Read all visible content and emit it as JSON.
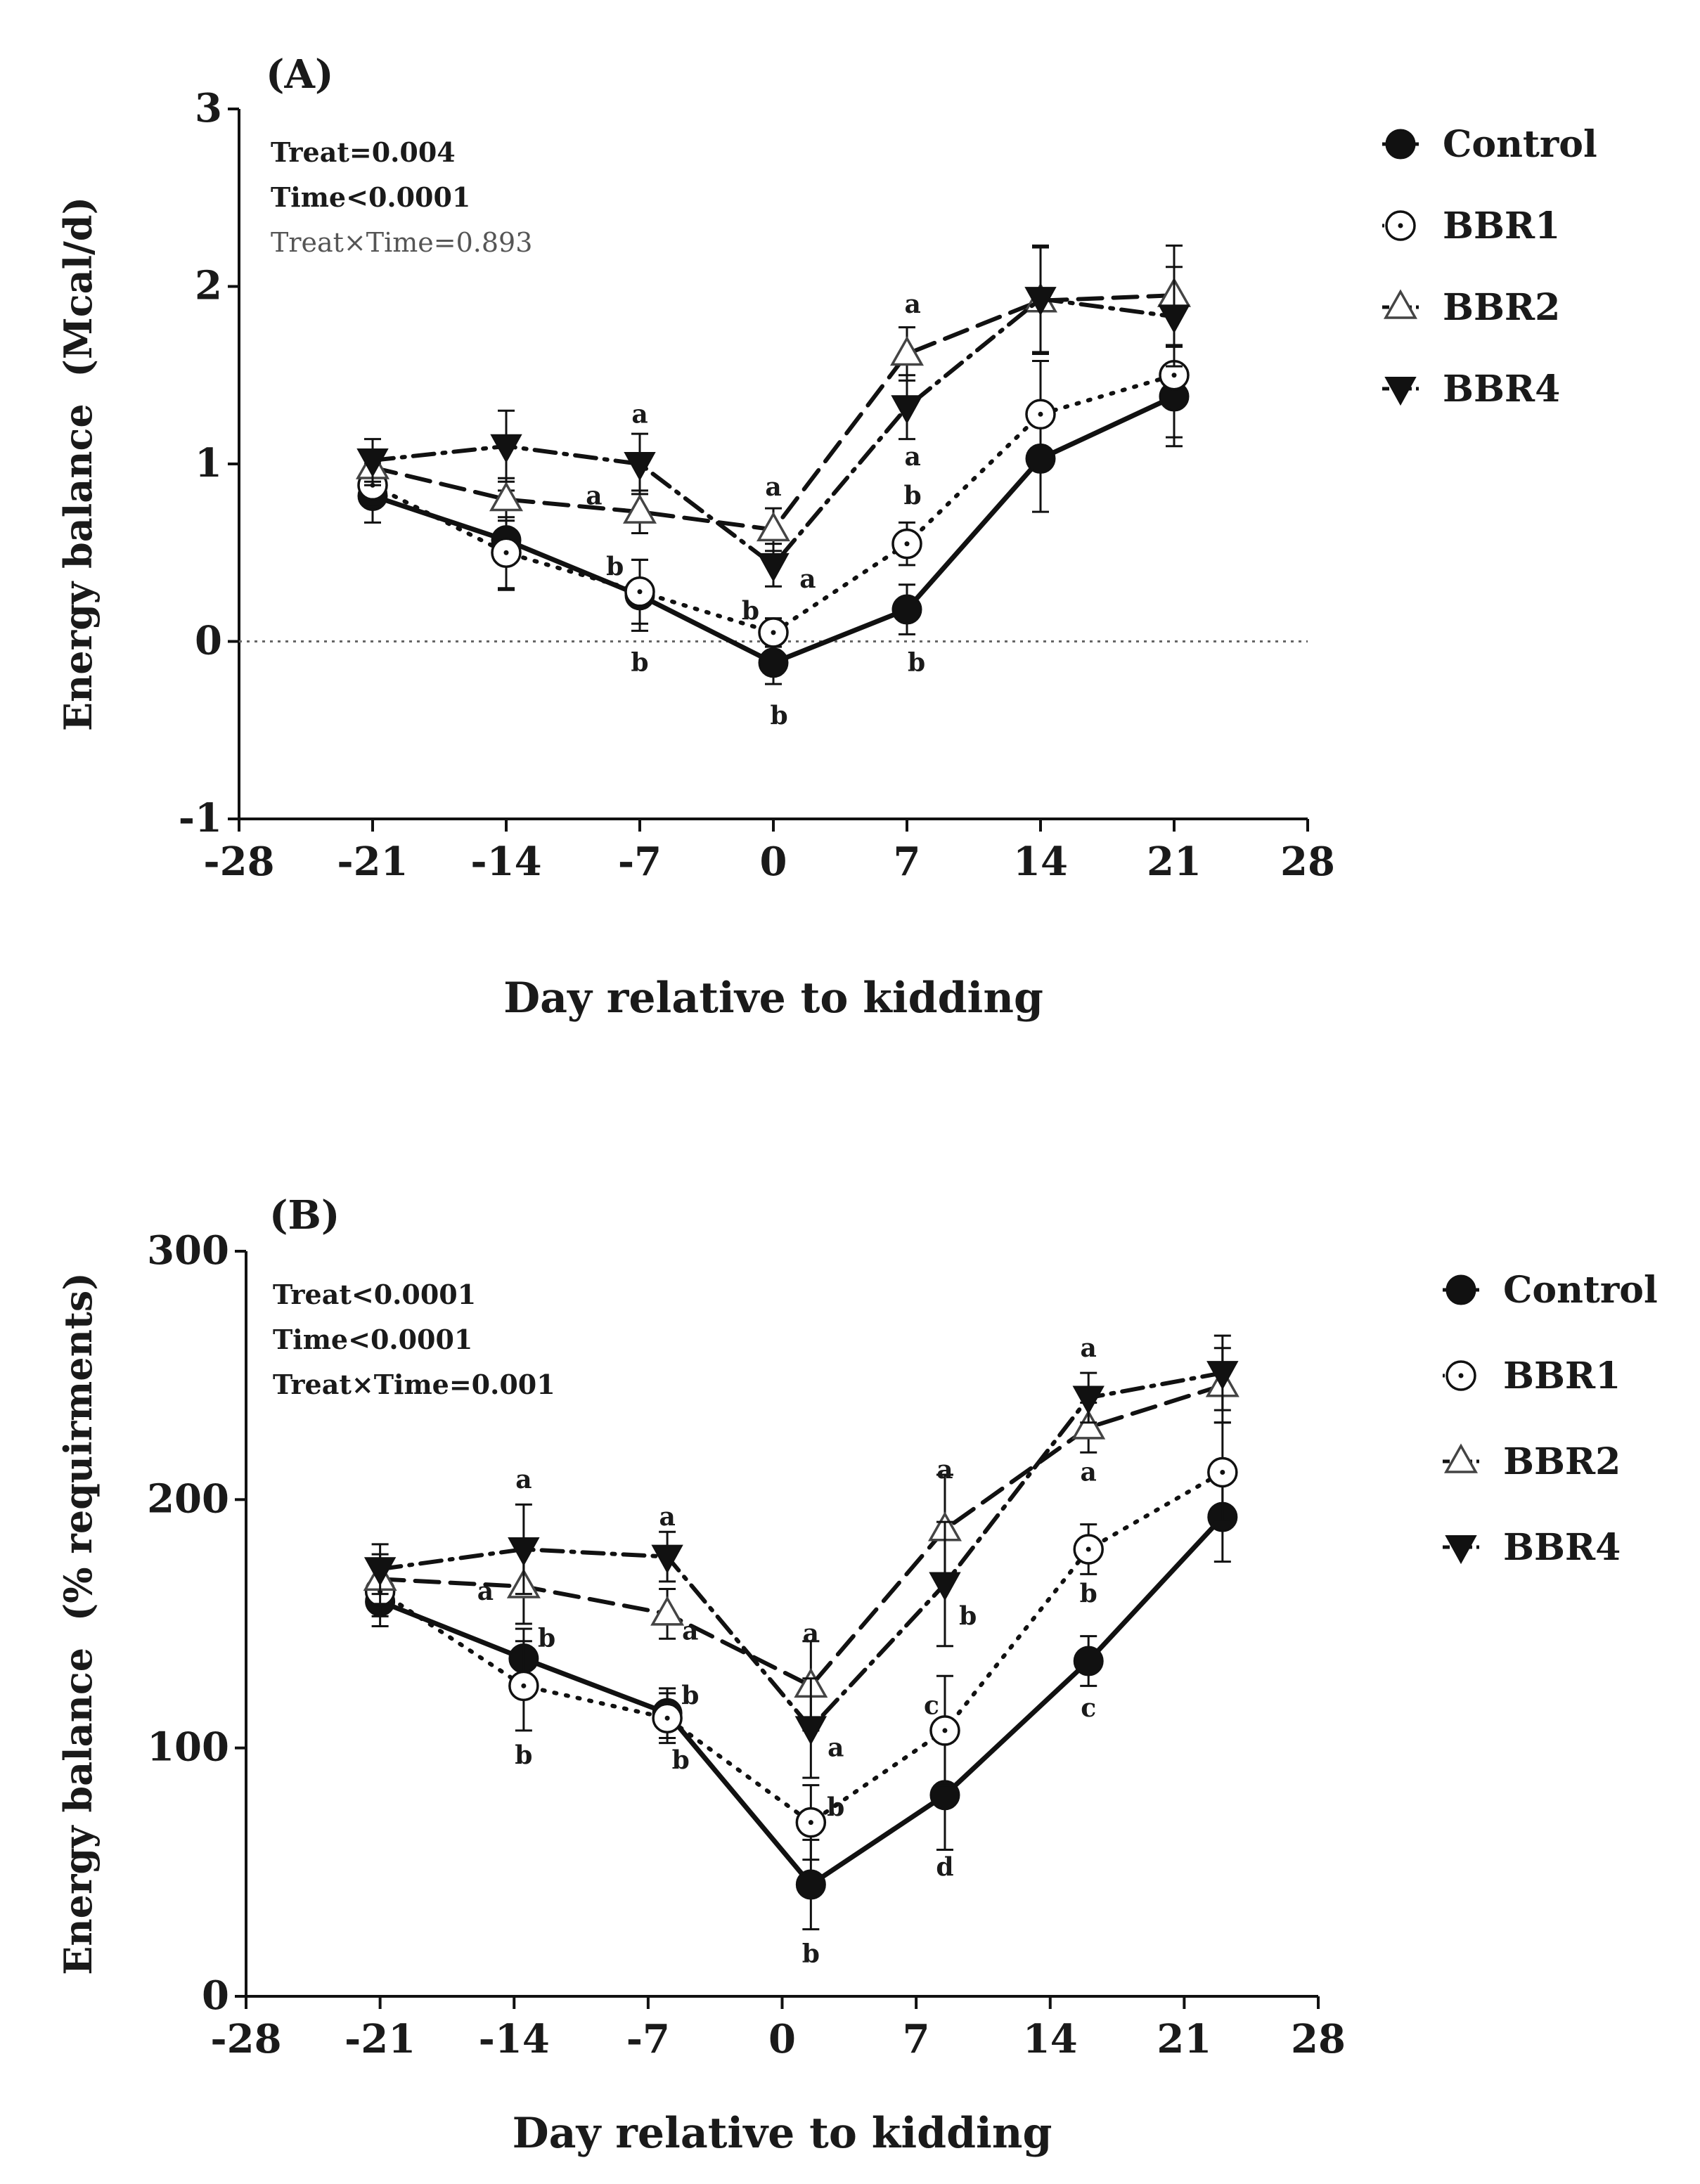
{
  "chart_data": [
    {
      "type": "line",
      "panel": "(A)",
      "xlabel": "Day relative to kidding",
      "ylabel": "Energy balance  (Mcal/d)",
      "xlim": [
        -28,
        28
      ],
      "ylim": [
        -1,
        3
      ],
      "x_ticks": [
        "-28",
        "-21",
        "-14",
        "-7",
        "0",
        "7",
        "14",
        "21",
        "28"
      ],
      "x_tick_values": [
        -28,
        -21,
        -14,
        -7,
        0,
        7,
        14,
        21,
        28
      ],
      "y_ticks": [
        "-1",
        "0",
        "1",
        "2",
        "3"
      ],
      "y_tick_values": [
        -1,
        0,
        1,
        2,
        3
      ],
      "reference_line_y": 0,
      "stats": [
        {
          "text": "Treat=0.004",
          "style": "bold"
        },
        {
          "text": "Time<0.0001",
          "style": "bold"
        },
        {
          "text": "Treat×Time=0.893",
          "style": "light"
        }
      ],
      "series": [
        {
          "name": "Control",
          "marker": "filled-circle",
          "line": "solid",
          "x": [
            -21,
            -14,
            -7,
            0,
            7,
            14,
            21
          ],
          "y": [
            0.82,
            0.57,
            0.26,
            -0.12,
            0.18,
            1.03,
            1.38
          ],
          "err": [
            0.15,
            0.28,
            0.2,
            0.12,
            0.14,
            0.3,
            0.28
          ]
        },
        {
          "name": "BBR1",
          "marker": "dotted-circle",
          "line": "dotted",
          "x": [
            -21,
            -14,
            -7,
            0,
            7,
            14,
            21
          ],
          "y": [
            0.88,
            0.5,
            0.28,
            0.05,
            0.55,
            1.28,
            1.5
          ],
          "err": [
            0.12,
            0.2,
            0.18,
            0.08,
            0.12,
            0.3,
            0.35
          ]
        },
        {
          "name": "BBR2",
          "marker": "open-triangle",
          "line": "dashed",
          "x": [
            -21,
            -14,
            -7,
            0,
            7,
            14,
            21
          ],
          "y": [
            0.98,
            0.8,
            0.73,
            0.63,
            1.62,
            1.92,
            1.95
          ],
          "err": [
            0.1,
            0.12,
            0.12,
            0.12,
            0.15,
            0.3,
            0.28
          ]
        },
        {
          "name": "BBR4",
          "marker": "filled-down-triangle",
          "line": "dash-dot",
          "x": [
            -21,
            -14,
            -7,
            0,
            7,
            14,
            21
          ],
          "y": [
            1.02,
            1.1,
            1.0,
            0.43,
            1.32,
            1.93,
            1.83
          ],
          "err": [
            0.12,
            0.2,
            0.17,
            0.12,
            0.18,
            0.3,
            0.28
          ]
        }
      ],
      "annotations": [
        {
          "text": "a",
          "x": -7,
          "y": 1.28
        },
        {
          "text": "a",
          "x": -9.4,
          "y": 0.82
        },
        {
          "text": "b",
          "x": -8.3,
          "y": 0.42
        },
        {
          "text": "b",
          "x": -7,
          "y": -0.12
        },
        {
          "text": "a",
          "x": 0,
          "y": 0.87
        },
        {
          "text": "a",
          "x": 1.8,
          "y": 0.35
        },
        {
          "text": "b",
          "x": -1.2,
          "y": 0.17
        },
        {
          "text": "b",
          "x": 0.3,
          "y": -0.42
        },
        {
          "text": "a",
          "x": 7.3,
          "y": 1.9
        },
        {
          "text": "a",
          "x": 7.3,
          "y": 1.04
        },
        {
          "text": "b",
          "x": 7.3,
          "y": 0.82
        },
        {
          "text": "b",
          "x": 7.5,
          "y": -0.12
        }
      ],
      "legend": [
        "Control",
        "BBR1",
        "BBR2",
        "BBR4"
      ]
    },
    {
      "type": "line",
      "panel": "(B)",
      "xlabel": "Day relative to kidding",
      "ylabel": "Energy balance  (% requirments)",
      "xlim": [
        -28,
        28
      ],
      "ylim": [
        0,
        300
      ],
      "x_ticks": [
        "-28",
        "-21",
        "-14",
        "-7",
        "0",
        "7",
        "14",
        "21",
        "28"
      ],
      "x_tick_values": [
        -28,
        -21,
        -14,
        -7,
        0,
        7,
        14,
        21,
        28
      ],
      "y_ticks": [
        "0",
        "100",
        "200",
        "300"
      ],
      "y_tick_values": [
        0,
        100,
        200,
        300
      ],
      "stats": [
        {
          "text": "Treat<0.0001",
          "style": "bold"
        },
        {
          "text": "Time<0.0001",
          "style": "bold"
        },
        {
          "text": "Treat×Time=0.001",
          "style": "bold"
        }
      ],
      "series": [
        {
          "name": "Control",
          "marker": "filled-circle",
          "line": "solid",
          "x": [
            -21,
            -13.5,
            -6,
            1.5,
            8.5,
            16,
            23
          ],
          "y": [
            159,
            136,
            114,
            45,
            81,
            135,
            193
          ],
          "err": [
            10,
            12,
            10,
            18,
            22,
            10,
            18
          ]
        },
        {
          "name": "BBR1",
          "marker": "dotted-circle",
          "line": "dotted",
          "x": [
            -21,
            -13.5,
            -6,
            1.5,
            8.5,
            16,
            23
          ],
          "y": [
            163,
            125,
            112,
            70,
            107,
            180,
            211
          ],
          "err": [
            10,
            18,
            10,
            15,
            22,
            10,
            20
          ]
        },
        {
          "name": "BBR2",
          "marker": "open-triangle",
          "line": "dashed",
          "x": [
            -21,
            -13.5,
            -6,
            1.5,
            8.5,
            16,
            23
          ],
          "y": [
            168,
            165,
            154,
            125,
            188,
            229,
            246
          ],
          "err": [
            10,
            15,
            10,
            18,
            22,
            10,
            15
          ]
        },
        {
          "name": "BBR4",
          "marker": "filled-down-triangle",
          "line": "dash-dot",
          "x": [
            -21,
            -13.5,
            -6,
            1.5,
            8.5,
            16,
            23
          ],
          "y": [
            172,
            180,
            177,
            108,
            166,
            241,
            251
          ],
          "err": [
            10,
            18,
            10,
            20,
            25,
            10,
            15
          ]
        }
      ],
      "annotations": [
        {
          "text": "a",
          "x": -13.5,
          "y": 208
        },
        {
          "text": "a",
          "x": -15.5,
          "y": 163
        },
        {
          "text": "b",
          "x": -12.3,
          "y": 144
        },
        {
          "text": "b",
          "x": -13.5,
          "y": 97
        },
        {
          "text": "a",
          "x": -6,
          "y": 193
        },
        {
          "text": "a",
          "x": -4.8,
          "y": 147
        },
        {
          "text": "b",
          "x": -4.8,
          "y": 121
        },
        {
          "text": "b",
          "x": -5.3,
          "y": 95
        },
        {
          "text": "a",
          "x": 1.5,
          "y": 146
        },
        {
          "text": "a",
          "x": 2.8,
          "y": 100
        },
        {
          "text": "b",
          "x": 2.8,
          "y": 76
        },
        {
          "text": "b",
          "x": 1.5,
          "y": 17
        },
        {
          "text": "a",
          "x": 8.5,
          "y": 212
        },
        {
          "text": "b",
          "x": 9.7,
          "y": 153
        },
        {
          "text": "c",
          "x": 7.8,
          "y": 117
        },
        {
          "text": "d",
          "x": 8.5,
          "y": 52
        },
        {
          "text": "a",
          "x": 16,
          "y": 261
        },
        {
          "text": "a",
          "x": 16,
          "y": 211
        },
        {
          "text": "b",
          "x": 16,
          "y": 162
        },
        {
          "text": "c",
          "x": 16,
          "y": 116
        }
      ],
      "legend": [
        "Control",
        "BBR1",
        "BBR2",
        "BBR4"
      ]
    }
  ]
}
